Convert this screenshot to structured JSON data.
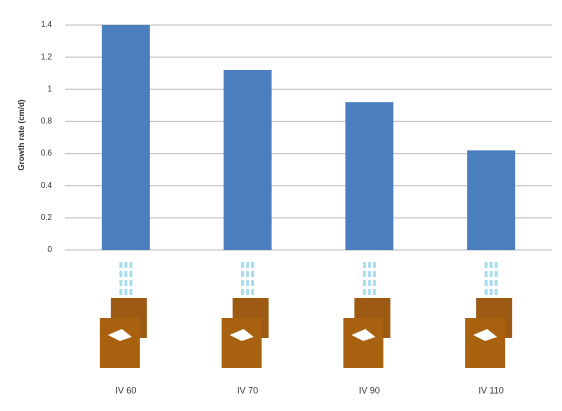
{
  "chart_data": {
    "type": "bar",
    "y_label": "Growth rate (cm/d)",
    "categories": [
      "IV 60",
      "IV 70",
      "IV 90",
      "IV 110"
    ],
    "values": [
      1.4,
      1.12,
      0.92,
      0.62
    ],
    "color": "#4a7ebf",
    "ylim": [
      0,
      1.4
    ],
    "yticks": [
      0,
      0.2,
      0.4,
      0.6,
      0.8,
      1.0,
      1.2,
      1.4
    ],
    "grid": true
  }
}
